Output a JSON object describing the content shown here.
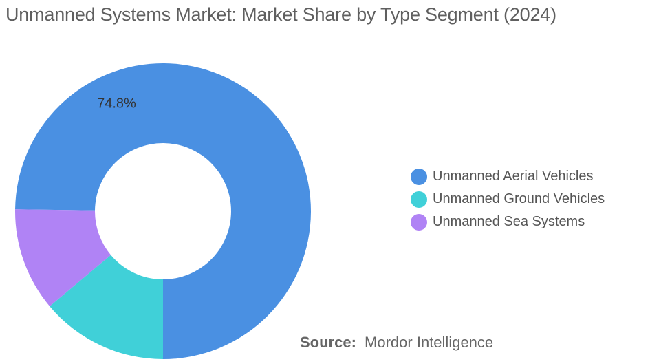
{
  "chart_data": {
    "type": "pie",
    "title": "Unmanned Systems Market: Market Share by Type Segment (2024)",
    "donut": true,
    "categories": [
      "Unmanned Aerial Vehicles",
      "Unmanned Ground Vehicles",
      "Unmanned Sea Systems"
    ],
    "values": [
      74.8,
      13.9,
      11.3
    ],
    "data_labels": [
      "74.8%",
      "",
      ""
    ],
    "colors": [
      "#4a90e2",
      "#40d0d8",
      "#b083f5"
    ],
    "legend_position": "right"
  },
  "source": {
    "label": "Source:",
    "text": "Mordor Intelligence"
  }
}
